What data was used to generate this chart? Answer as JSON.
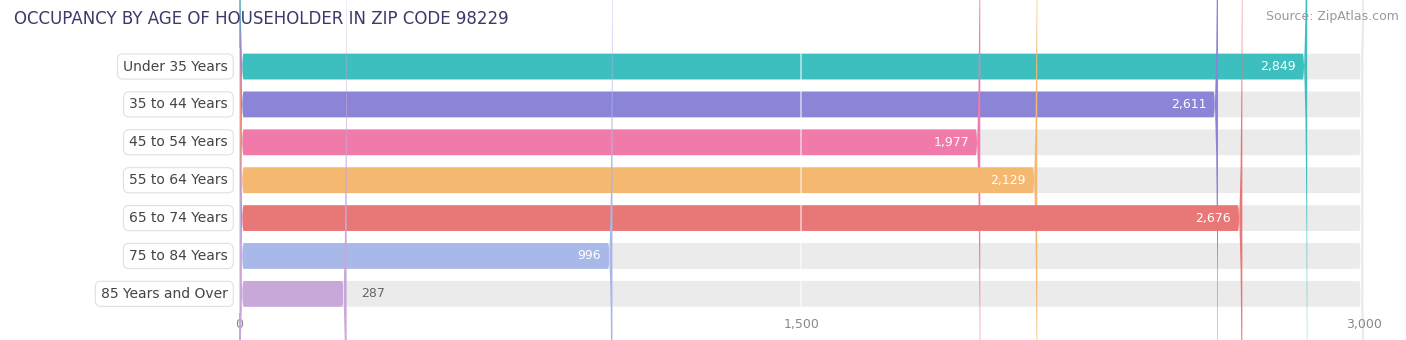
{
  "title": "OCCUPANCY BY AGE OF HOUSEHOLDER IN ZIP CODE 98229",
  "source": "Source: ZipAtlas.com",
  "categories": [
    "Under 35 Years",
    "35 to 44 Years",
    "45 to 54 Years",
    "55 to 64 Years",
    "65 to 74 Years",
    "75 to 84 Years",
    "85 Years and Over"
  ],
  "values": [
    2849,
    2611,
    1977,
    2129,
    2676,
    996,
    287
  ],
  "bar_colors": [
    "#3dbfbf",
    "#8b84d7",
    "#f07aaa",
    "#f5b870",
    "#e87878",
    "#a8b8e8",
    "#c8a8d8"
  ],
  "xlim": [
    0,
    3000
  ],
  "xticks": [
    0,
    1500,
    3000
  ],
  "xtick_labels": [
    "0",
    "1,500",
    "3,000"
  ],
  "title_fontsize": 12,
  "source_fontsize": 9,
  "value_fontsize": 9,
  "label_fontsize": 10,
  "background_color": "#ffffff",
  "bar_bg_color": "#ebebeb"
}
